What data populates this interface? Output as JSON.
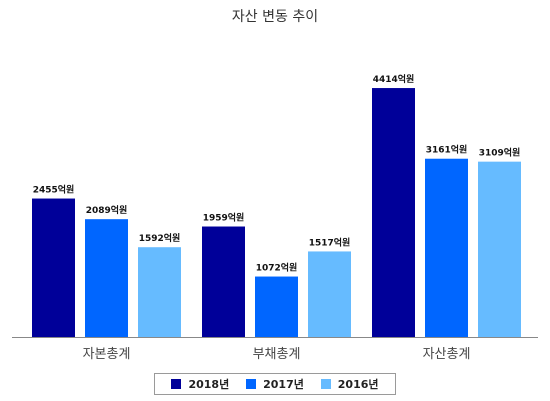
{
  "chart_data": {
    "type": "bar",
    "title": "자산 변동 추이",
    "categories": [
      "자본총계",
      "부채총계",
      "자산총계"
    ],
    "series": [
      {
        "name": "2018년",
        "color": "#000099",
        "values": [
          2455,
          1959,
          4414
        ]
      },
      {
        "name": "2017년",
        "color": "#0066ff",
        "values": [
          2089,
          1072,
          3161
        ]
      },
      {
        "name": "2016년",
        "color": "#66bbff",
        "values": [
          1592,
          1517,
          3109
        ]
      }
    ],
    "value_suffix": "억원",
    "ylim": [
      0,
      5000
    ],
    "grid": false,
    "legend": "bottom"
  }
}
